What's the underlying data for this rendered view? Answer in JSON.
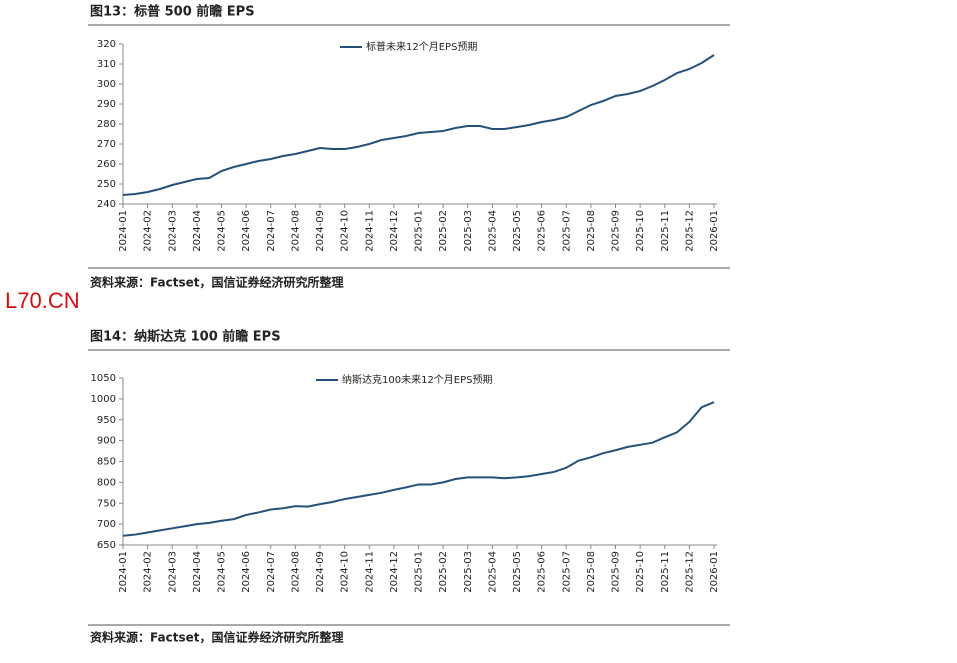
{
  "watermark": "L70.CN",
  "chart_data": [
    {
      "type": "line",
      "title": "图13：标普 500 前瞻 EPS",
      "source": "资料来源：Factset，国信证券经济研究所整理",
      "categories": [
        "2024-01",
        null,
        "2024-02",
        null,
        "2024-03",
        null,
        "2024-04",
        null,
        "2024-05",
        null,
        "2024-06",
        null,
        "2024-07",
        null,
        "2024-08",
        null,
        "2024-09",
        null,
        "2024-10",
        null,
        "2024-11",
        null,
        "2024-12",
        null,
        "2025-01",
        null,
        "2025-02",
        null,
        "2025-03",
        null,
        "2025-04",
        null,
        "2025-05",
        null,
        "2025-06",
        null,
        "2025-07",
        null,
        "2025-08",
        null,
        "2025-09",
        null,
        "2025-10",
        null,
        "2025-11",
        null,
        "2025-12",
        null,
        "2026-01"
      ],
      "series": [
        {
          "name": "标普未来12个月EPS预期",
          "color": "#24507a",
          "values": [
            244.5,
            245,
            246,
            247.5,
            249.5,
            251,
            252.5,
            253,
            256.5,
            258.5,
            260,
            261.5,
            262.5,
            264,
            265,
            266.5,
            268,
            267.5,
            267.5,
            268.5,
            270,
            272,
            273,
            274,
            275.5,
            276,
            276.5,
            278,
            279,
            279,
            277.5,
            277.5,
            278.5,
            279.5,
            281,
            282,
            283.5,
            286.5,
            289.5,
            291.5,
            294,
            295,
            296.5,
            299,
            302,
            305.5,
            307.5,
            310.5,
            314.5
          ]
        }
      ],
      "ylim": [
        240,
        320
      ],
      "yticks": [
        240,
        250,
        260,
        270,
        280,
        290,
        300,
        310,
        320
      ],
      "grid": false,
      "legend": "top"
    },
    {
      "type": "line",
      "title": "图14：纳斯达克 100 前瞻 EPS",
      "source": "资料来源：Factset，国信证券经济研究所整理",
      "categories": [
        "2024-01",
        null,
        "2024-02",
        null,
        "2024-03",
        null,
        "2024-04",
        null,
        "2024-05",
        null,
        "2024-06",
        null,
        "2024-07",
        null,
        "2024-08",
        null,
        "2024-09",
        null,
        "2024-10",
        null,
        "2024-11",
        null,
        "2024-12",
        null,
        "2025-01",
        null,
        "2025-02",
        null,
        "2025-03",
        null,
        "2025-04",
        null,
        "2025-05",
        null,
        "2025-06",
        null,
        "2025-07",
        null,
        "2025-08",
        null,
        "2025-09",
        null,
        "2025-10",
        null,
        "2025-11",
        null,
        "2025-12",
        null,
        "2026-01"
      ],
      "series": [
        {
          "name": "纳斯达克100未来12个月EPS预期",
          "color": "#24507a",
          "values": [
            672,
            675,
            680,
            685,
            690,
            695,
            700,
            703,
            708,
            712,
            722,
            728,
            735,
            738,
            743,
            742,
            748,
            753,
            760,
            765,
            770,
            775,
            782,
            788,
            795,
            795,
            800,
            808,
            812,
            812,
            812,
            810,
            812,
            815,
            820,
            825,
            835,
            852,
            860,
            870,
            877,
            885,
            890,
            895,
            908,
            920,
            945,
            980,
            992
          ]
        }
      ],
      "ylim": [
        650,
        1050
      ],
      "yticks": [
        650,
        700,
        750,
        800,
        850,
        900,
        950,
        1000,
        1050
      ],
      "grid": false,
      "legend": "top"
    }
  ]
}
